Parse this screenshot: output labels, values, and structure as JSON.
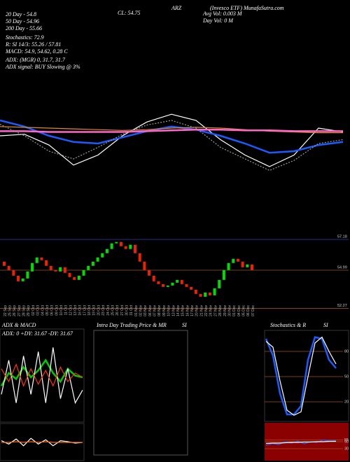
{
  "header": [
    "20 Day - 54.8",
    "50 Day - 54.96",
    "200 Day - 55.66",
    "Stochastics: 72.9",
    "R: SI 14/3: 55.26 / 57.81",
    "MACD: 54.9, 54.62, 0.28 C",
    "ADX: (MGR) 0, 31.7, 31.7",
    "ADX signal: BUY Slowing @ 3%",
    "CL: 54.75",
    "Avg Vol: 0.003 M",
    "Day Vol: 0 M",
    "ARZ",
    "(Invesco ETF) MunafaSutra.com"
  ],
  "panels": [
    "ADX & MACD",
    "Intra Day Trading Price & MR",
    "SI",
    "Stochastics & R",
    "SI",
    "ADX: 0 +DY: 31.67 -DY: 31.67"
  ],
  "chart_data": [
    {
      "type": "candlestick",
      "categories": [
        "22 Sep",
        "25 Sep",
        "26 Sep",
        "27 Sep",
        "28 Sep",
        "29 Sep",
        "02 Oct",
        "03 Oct",
        "04 Oct",
        "05 Oct",
        "06 Oct",
        "09 Oct",
        "10 Oct",
        "11 Oct",
        "12 Oct",
        "13 Oct",
        "16 Oct",
        "17 Oct",
        "18 Oct",
        "19 Oct",
        "20 Oct",
        "23 Oct",
        "24 Oct",
        "25 Oct",
        "26 Oct",
        "27 Oct",
        "30 Oct",
        "31 Oct",
        "01 Nov",
        "02 Nov",
        "03 Nov",
        "06 Nov",
        "07 Nov",
        "08 Nov",
        "09 Nov",
        "10 Nov",
        "13 Nov",
        "14 Nov",
        "15 Nov",
        "16 Nov",
        "17 Nov",
        "20 Nov",
        "21 Nov",
        "22 Nov",
        "24 Nov",
        "27 Nov",
        "28 Nov",
        "29 Nov",
        "30 Nov",
        "01 Dec",
        "04 Dec",
        "05 Dec",
        "06 Dec",
        "07 Dec"
      ],
      "open": [
        55.6,
        55.3,
        55.0,
        54.6,
        54.2,
        54.4,
        54.9,
        55.5,
        55.9,
        55.7,
        55.3,
        55.0,
        54.9,
        55.2,
        54.8,
        54.5,
        54.3,
        54.6,
        55.0,
        55.3,
        55.6,
        55.9,
        56.2,
        56.5,
        56.9,
        57.0,
        56.7,
        56.5,
        56.8,
        56.2,
        55.6,
        55.0,
        54.6,
        54.2,
        54.0,
        53.8,
        53.9,
        54.1,
        54.3,
        54.0,
        53.8,
        53.6,
        53.3,
        53.1,
        53.4,
        53.2,
        53.7,
        54.3,
        55.0,
        55.5,
        55.8,
        55.6,
        55.2,
        55.4
      ],
      "close": [
        55.3,
        55.0,
        54.6,
        54.2,
        54.4,
        54.9,
        55.5,
        55.9,
        55.7,
        55.3,
        55.0,
        54.9,
        55.2,
        54.8,
        54.5,
        54.3,
        54.6,
        55.0,
        55.3,
        55.6,
        55.9,
        56.2,
        56.5,
        56.9,
        57.0,
        56.7,
        56.5,
        56.8,
        56.2,
        55.6,
        55.0,
        54.6,
        54.2,
        54.0,
        53.8,
        53.9,
        54.1,
        54.3,
        54.0,
        53.8,
        53.6,
        53.3,
        53.1,
        53.4,
        53.2,
        53.7,
        54.3,
        55.0,
        55.5,
        55.8,
        55.6,
        55.2,
        55.4,
        55.0
      ],
      "up_color": "#00dd00",
      "down_color": "#ee2200",
      "ylim": [
        51.8,
        57.78
      ],
      "yticks": [
        57.18,
        54.99,
        52.27
      ],
      "grid": true
    },
    {
      "type": "line",
      "ylim": [
        0,
        100
      ],
      "series": [
        {
          "name": "Price",
          "color": "#ffffff",
          "values": [
            60,
            62,
            48,
            22,
            35,
            60,
            78,
            88,
            80,
            55,
            35,
            20,
            35,
            70,
            65
          ]
        },
        {
          "name": "MA 20",
          "color": "#1a5cff",
          "values": [
            80,
            72,
            60,
            52,
            50,
            58,
            66,
            72,
            68,
            60,
            50,
            38,
            40,
            48,
            52
          ]
        },
        {
          "name": "MA 50",
          "color": "#e08a2a",
          "values": [
            72,
            71,
            70,
            69,
            68,
            67,
            68,
            70,
            71,
            70,
            68,
            66,
            65,
            64,
            64
          ]
        },
        {
          "name": "MA 200",
          "color": "#ff66cc",
          "values": [
            66,
            66,
            65,
            65,
            65,
            65,
            66,
            67,
            68,
            68,
            67,
            67,
            66,
            66,
            66
          ]
        },
        {
          "name": "Band",
          "color": "#999999",
          "values": [
            75,
            60,
            40,
            30,
            45,
            62,
            74,
            80,
            70,
            45,
            30,
            15,
            28,
            50,
            55
          ]
        }
      ]
    },
    {
      "type": "line",
      "ylim": [
        0,
        100
      ],
      "series": [
        {
          "name": "ADX",
          "color": "#00cc00",
          "values": [
            40,
            55,
            48,
            62,
            50,
            58,
            70,
            55,
            45,
            60,
            52,
            50
          ]
        },
        {
          "name": "+DY",
          "color": "#ffffff",
          "values": [
            30,
            70,
            20,
            75,
            30,
            80,
            20,
            85,
            25,
            60,
            20,
            35
          ]
        },
        {
          "name": "-DY",
          "color": "#ff3300",
          "values": [
            60,
            45,
            65,
            40,
            60,
            42,
            58,
            40,
            62,
            45,
            55,
            50
          ]
        }
      ]
    },
    {
      "type": "line",
      "ylim": [
        0,
        100
      ],
      "series": [
        {
          "name": "MACD",
          "color": "#ffffff",
          "values": [
            55,
            45,
            60,
            40,
            62,
            45,
            58,
            40,
            55,
            52,
            48,
            50
          ]
        },
        {
          "name": "Signal",
          "color": "#ff6600",
          "values": [
            50,
            50,
            52,
            50,
            52,
            50,
            52,
            50,
            50,
            50,
            50,
            50
          ]
        }
      ]
    },
    {
      "type": "line",
      "ylim": [
        0,
        100
      ],
      "yticks": [
        80,
        50,
        20
      ],
      "series": [
        {
          "name": "Stoch K",
          "color": "#1a5cff",
          "values": [
            95,
            75,
            30,
            5,
            5,
            15,
            70,
            97,
            95,
            70,
            60
          ]
        },
        {
          "name": "Stoch D",
          "color": "#ffffff",
          "values": [
            92,
            85,
            45,
            10,
            4,
            8,
            50,
            90,
            97,
            80,
            65
          ]
        }
      ]
    },
    {
      "type": "line",
      "ylim": [
        0,
        100
      ],
      "yticks": [
        55,
        50,
        30
      ],
      "background": "#8b0000",
      "series": [
        {
          "name": "RSI",
          "color": "#1a5cff",
          "values": [
            40,
            45,
            42,
            50,
            46,
            52,
            44,
            50,
            48,
            55,
            52,
            53
          ]
        },
        {
          "name": "RSI avg",
          "color": "#ffffff",
          "values": [
            45,
            46,
            46,
            47,
            48,
            48,
            49,
            49,
            50,
            50,
            51,
            51
          ]
        }
      ]
    }
  ]
}
